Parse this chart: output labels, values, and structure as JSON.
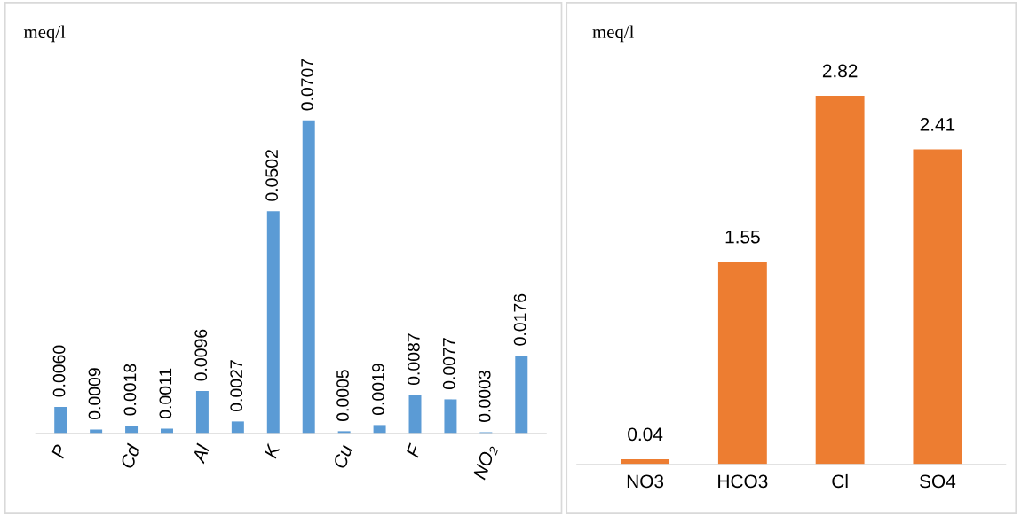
{
  "chart_data": [
    {
      "type": "bar",
      "ylabel": "meq/l",
      "categories": [
        "P",
        null,
        "Cd",
        null,
        "Al",
        null,
        "K",
        null,
        "Cu",
        null,
        "F",
        null,
        "NO₂",
        null
      ],
      "values": [
        0.006,
        0.0009,
        0.0018,
        0.0011,
        0.0096,
        0.0027,
        0.0502,
        0.0707,
        0.0005,
        0.0019,
        0.0087,
        0.0077,
        0.0003,
        0.0176
      ],
      "value_labels": [
        "0.0060",
        "0.0009",
        "0.0018",
        "0.0011",
        "0.0096",
        "0.0027",
        "0.0502",
        "0.0707",
        "0.0005",
        "0.0019",
        "0.0087",
        "0.0077",
        "0.0003",
        "0.0176"
      ],
      "color": "#5b9bd5",
      "grid": false,
      "legend": false
    },
    {
      "type": "bar",
      "ylabel": "meq/l",
      "categories": [
        "NO3",
        "HCO3",
        "Cl",
        "SO4"
      ],
      "values": [
        0.04,
        1.55,
        2.82,
        2.41
      ],
      "color": "#ed7d31",
      "data_labels": true,
      "grid": false,
      "legend": false
    }
  ]
}
